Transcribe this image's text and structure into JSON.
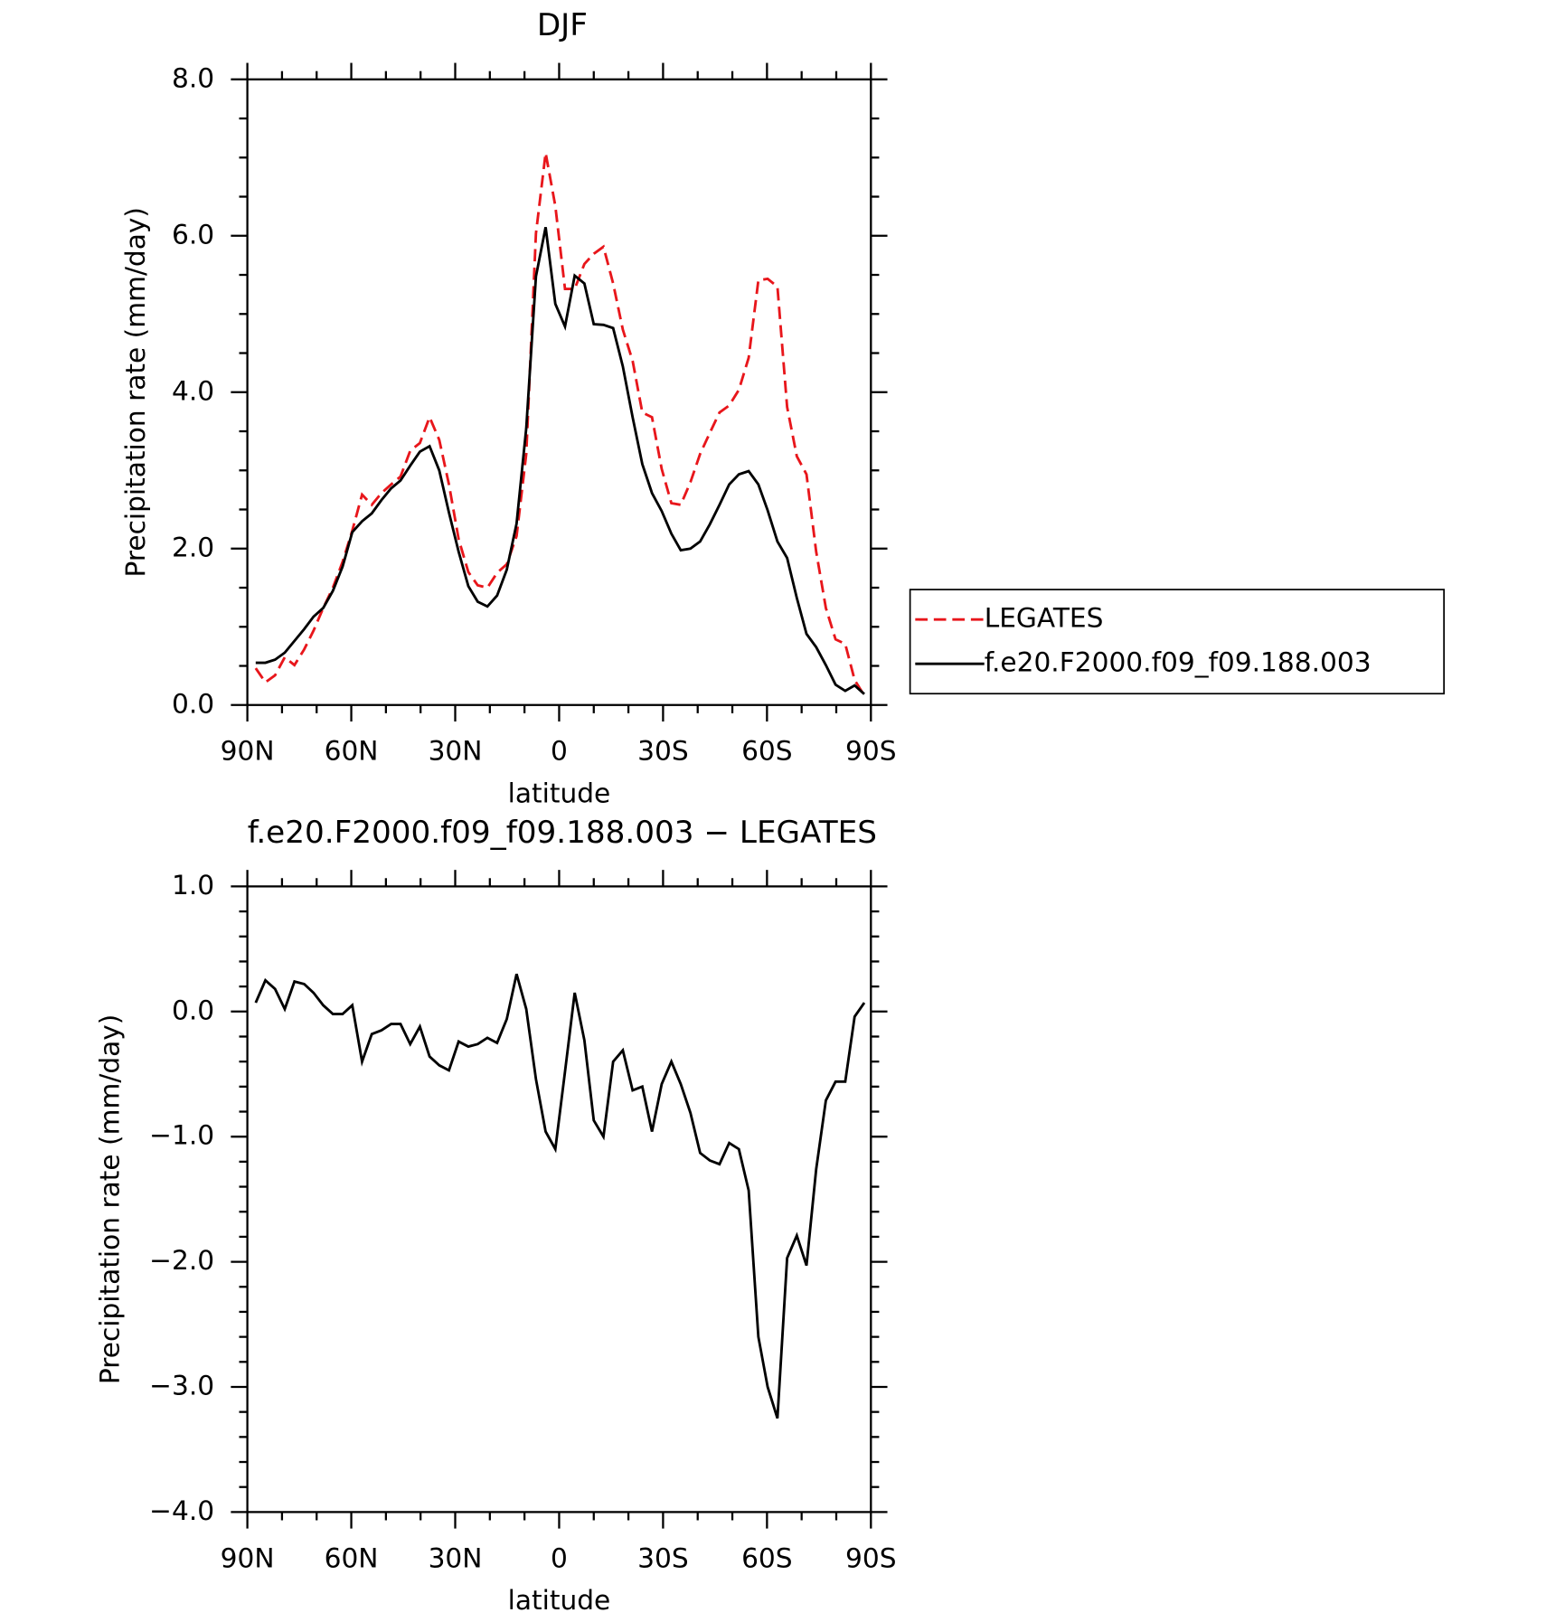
{
  "chart_data": [
    {
      "type": "line",
      "title": "DJF",
      "xlabel": "latitude",
      "ylabel": "Precipitation rate (mm/day)",
      "x": [
        87.6,
        84.8,
        82.0,
        79.2,
        76.4,
        73.6,
        70.9,
        68.1,
        65.3,
        62.5,
        59.7,
        56.9,
        54.1,
        51.3,
        48.5,
        45.8,
        43.0,
        40.2,
        37.4,
        34.6,
        31.8,
        29.0,
        26.2,
        23.5,
        20.7,
        17.9,
        15.1,
        12.3,
        9.5,
        6.7,
        3.9,
        1.1,
        -1.7,
        -4.5,
        -7.3,
        -10.0,
        -12.8,
        -15.6,
        -18.4,
        -21.2,
        -24.0,
        -26.8,
        -29.6,
        -32.4,
        -35.1,
        -37.9,
        -40.7,
        -43.5,
        -46.3,
        -49.1,
        -51.9,
        -54.7,
        -57.5,
        -60.2,
        -63.0,
        -65.8,
        -68.6,
        -71.4,
        -74.2,
        -77.0,
        -79.8,
        -82.6,
        -85.3,
        -88.1
      ],
      "xlim": [
        90,
        -90
      ],
      "xticks": [
        {
          "value": 90,
          "label": "90N"
        },
        {
          "value": 60,
          "label": "60N"
        },
        {
          "value": 30,
          "label": "30N"
        },
        0,
        {
          "value": -30,
          "label": "30S"
        },
        {
          "value": -60,
          "label": "60S"
        },
        {
          "value": -90,
          "label": "90S"
        }
      ],
      "ylim": [
        0,
        8
      ],
      "yticks": [
        {
          "value": 0,
          "label": "0.0"
        },
        {
          "value": 2,
          "label": "2.0"
        },
        {
          "value": 4,
          "label": "4.0"
        },
        {
          "value": 6,
          "label": "6.0"
        },
        {
          "value": 8,
          "label": "8.0"
        }
      ],
      "legend": "outside-right",
      "series": [
        {
          "name": "LEGATES",
          "color": "#e8161b",
          "linestyle": "dashed",
          "values": [
            0.47,
            0.29,
            0.38,
            0.61,
            0.51,
            0.71,
            0.95,
            1.24,
            1.5,
            1.83,
            2.23,
            2.69,
            2.56,
            2.71,
            2.82,
            2.92,
            3.25,
            3.35,
            3.68,
            3.39,
            2.82,
            2.12,
            1.7,
            1.53,
            1.5,
            1.69,
            1.8,
            2.16,
            3.21,
            6.03,
            7.06,
            6.38,
            5.32,
            5.32,
            5.64,
            5.77,
            5.86,
            5.39,
            4.8,
            4.4,
            3.74,
            3.68,
            3.02,
            2.58,
            2.56,
            2.85,
            3.21,
            3.48,
            3.74,
            3.83,
            4.03,
            4.44,
            5.43,
            5.45,
            5.35,
            3.81,
            3.18,
            2.95,
            1.96,
            1.24,
            0.84,
            0.78,
            0.32,
            0.12
          ]
        },
        {
          "name": "f.e20.F2000.f09_f09.188.003",
          "color": "#000000",
          "linestyle": "solid",
          "values": [
            0.54,
            0.54,
            0.58,
            0.67,
            0.82,
            0.97,
            1.13,
            1.24,
            1.46,
            1.77,
            2.21,
            2.35,
            2.45,
            2.62,
            2.77,
            2.87,
            3.06,
            3.24,
            3.31,
            3.0,
            2.46,
            1.96,
            1.52,
            1.32,
            1.26,
            1.4,
            1.73,
            2.32,
            3.54,
            5.48,
            6.11,
            5.13,
            4.84,
            5.49,
            5.39,
            4.87,
            4.86,
            4.82,
            4.33,
            3.68,
            3.08,
            2.71,
            2.48,
            2.19,
            1.98,
            2.0,
            2.09,
            2.31,
            2.56,
            2.82,
            2.95,
            2.99,
            2.82,
            2.49,
            2.09,
            1.88,
            1.37,
            0.91,
            0.74,
            0.51,
            0.26,
            0.18,
            0.25,
            0.14
          ]
        }
      ]
    },
    {
      "type": "line",
      "title": "f.e20.F2000.f09_f09.188.003 − LEGATES",
      "xlabel": "latitude",
      "ylabel": "Precipitation rate (mm/day)",
      "x": [
        87.6,
        84.8,
        82.0,
        79.2,
        76.4,
        73.6,
        70.9,
        68.1,
        65.3,
        62.5,
        59.7,
        56.9,
        54.1,
        51.3,
        48.5,
        45.8,
        43.0,
        40.2,
        37.4,
        34.6,
        31.8,
        29.0,
        26.2,
        23.5,
        20.7,
        17.9,
        15.1,
        12.3,
        9.5,
        6.7,
        3.9,
        1.1,
        -1.7,
        -4.5,
        -7.3,
        -10.0,
        -12.8,
        -15.6,
        -18.4,
        -21.2,
        -24.0,
        -26.8,
        -29.6,
        -32.4,
        -35.1,
        -37.9,
        -40.7,
        -43.5,
        -46.3,
        -49.1,
        -51.9,
        -54.7,
        -57.5,
        -60.2,
        -63.0,
        -65.8,
        -68.6,
        -71.4,
        -74.2,
        -77.0,
        -79.8,
        -82.6,
        -85.3,
        -88.1
      ],
      "xlim": [
        90,
        -90
      ],
      "xticks": [
        {
          "value": 90,
          "label": "90N"
        },
        {
          "value": 60,
          "label": "60N"
        },
        {
          "value": 30,
          "label": "30N"
        },
        0,
        {
          "value": -30,
          "label": "30S"
        },
        {
          "value": -60,
          "label": "60S"
        },
        {
          "value": -90,
          "label": "90S"
        }
      ],
      "ylim": [
        -4,
        1
      ],
      "yticks": [
        {
          "value": -4,
          "label": "−4.0"
        },
        {
          "value": -3,
          "label": "−3.0"
        },
        {
          "value": -2,
          "label": "−2.0"
        },
        {
          "value": -1,
          "label": "−1.0"
        },
        {
          "value": 0,
          "label": "0.0"
        },
        {
          "value": 1,
          "label": "1.0"
        }
      ],
      "series": [
        {
          "color": "#000000",
          "linestyle": "solid",
          "values": [
            0.07,
            0.25,
            0.18,
            0.02,
            0.24,
            0.22,
            0.15,
            0.05,
            -0.02,
            -0.02,
            0.05,
            -0.4,
            -0.18,
            -0.15,
            -0.1,
            -0.1,
            -0.26,
            -0.12,
            -0.36,
            -0.43,
            -0.47,
            -0.24,
            -0.28,
            -0.26,
            -0.21,
            -0.25,
            -0.06,
            0.3,
            0.02,
            -0.54,
            -0.96,
            -1.1,
            -0.48,
            0.15,
            -0.23,
            -0.87,
            -1.0,
            -0.4,
            -0.31,
            -0.63,
            -0.6,
            -0.96,
            -0.58,
            -0.4,
            -0.58,
            -0.81,
            -1.13,
            -1.19,
            -1.22,
            -1.05,
            -1.1,
            -1.43,
            -2.6,
            -3.0,
            -3.25,
            -1.97,
            -1.79,
            -2.03,
            -1.26,
            -0.71,
            -0.56,
            -0.56,
            -0.04,
            0.07
          ]
        }
      ]
    }
  ]
}
